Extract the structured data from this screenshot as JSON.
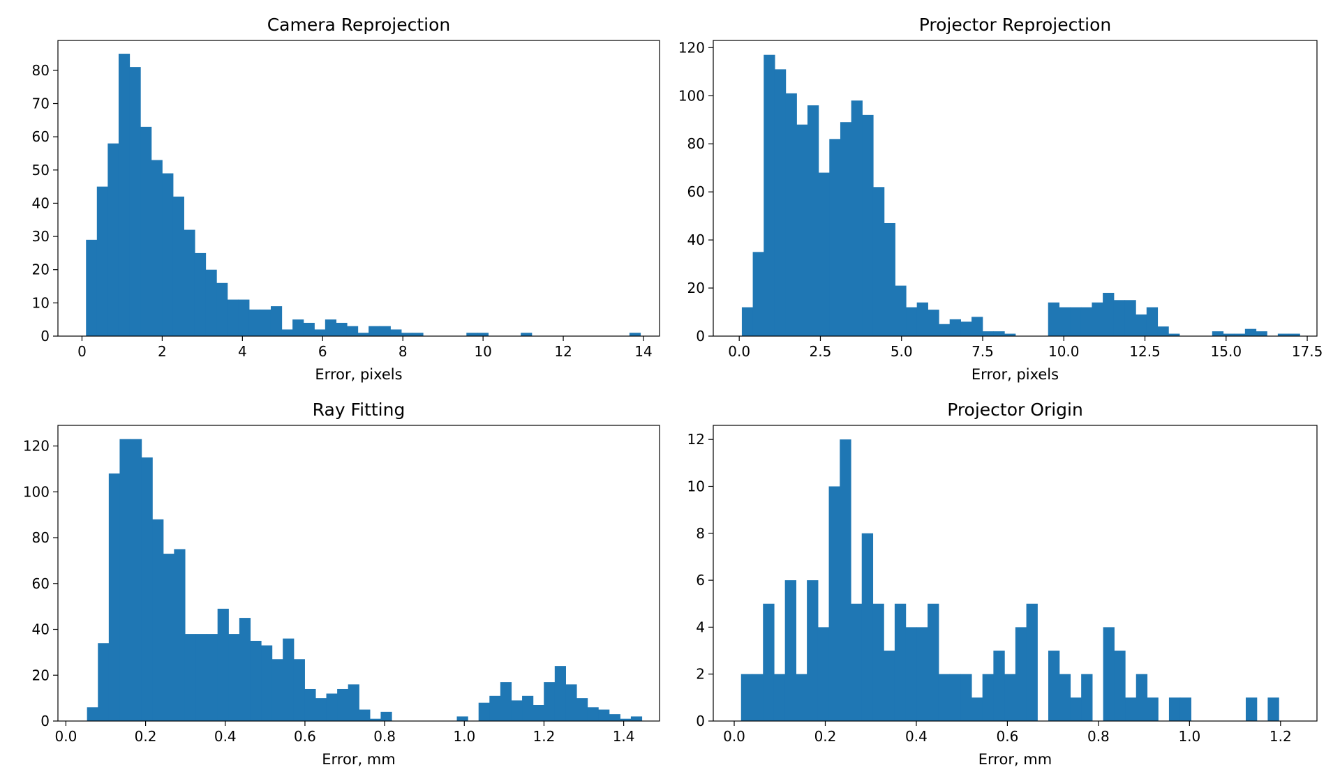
{
  "figure": {
    "bar_color": "#1f77b4"
  },
  "chart_data": [
    {
      "type": "bar",
      "title": "Camera Reprojection",
      "xlabel": "Error, pixels",
      "ylabel": "",
      "xlim": [
        -0.6,
        14.4
      ],
      "ylim": [
        0,
        89
      ],
      "xticks": [
        0,
        2,
        4,
        6,
        8,
        10,
        12,
        14
      ],
      "yticks": [
        0,
        10,
        20,
        30,
        40,
        50,
        60,
        70,
        80
      ],
      "bin_start": 0.1,
      "bin_width": 0.271,
      "values": [
        29,
        45,
        58,
        85,
        81,
        63,
        53,
        49,
        42,
        32,
        25,
        20,
        16,
        11,
        11,
        8,
        8,
        9,
        2,
        5,
        4,
        2,
        5,
        4,
        3,
        1,
        3,
        3,
        2,
        1,
        1,
        0,
        0,
        0,
        0,
        1,
        1,
        0,
        0,
        0,
        1,
        0,
        0,
        0,
        0,
        0,
        0,
        0,
        0,
        0,
        1
      ]
    },
    {
      "type": "bar",
      "title": "Projector Reprojection",
      "xlabel": "Error, pixels",
      "ylabel": "",
      "xlim": [
        -0.8,
        17.8
      ],
      "ylim": [
        0,
        123
      ],
      "xticks": [
        0.0,
        2.5,
        5.0,
        7.5,
        10.0,
        12.5,
        15.0,
        17.5
      ],
      "tick_decimals": 1,
      "yticks": [
        0,
        20,
        40,
        60,
        80,
        100,
        120
      ],
      "bin_start": 0.08,
      "bin_width": 0.337,
      "values": [
        12,
        35,
        117,
        111,
        101,
        88,
        96,
        68,
        82,
        89,
        98,
        92,
        62,
        47,
        21,
        12,
        14,
        11,
        5,
        7,
        6,
        8,
        2,
        2,
        1,
        0,
        0,
        0,
        14,
        12,
        12,
        12,
        14,
        18,
        15,
        15,
        9,
        12,
        4,
        1,
        0,
        0,
        0,
        2,
        1,
        1,
        3,
        2,
        0,
        1,
        1
      ]
    },
    {
      "type": "bar",
      "title": "Ray Fitting",
      "xlabel": "Error, mm",
      "ylabel": "",
      "xlim": [
        -0.02,
        1.49
      ],
      "ylim": [
        0,
        129
      ],
      "xticks": [
        0.0,
        0.2,
        0.4,
        0.6,
        0.8,
        1.0,
        1.2,
        1.4
      ],
      "tick_decimals": 1,
      "yticks": [
        0,
        20,
        40,
        60,
        80,
        100,
        120
      ],
      "bin_start": 0.053,
      "bin_width": 0.0273,
      "values": [
        6,
        34,
        108,
        123,
        123,
        115,
        88,
        73,
        75,
        38,
        38,
        38,
        49,
        38,
        45,
        35,
        33,
        27,
        36,
        27,
        14,
        10,
        12,
        14,
        16,
        5,
        1,
        4,
        0,
        0,
        0,
        0,
        0,
        0,
        2,
        0,
        8,
        11,
        17,
        9,
        11,
        7,
        17,
        24,
        16,
        10,
        6,
        5,
        3,
        1,
        2
      ]
    },
    {
      "type": "bar",
      "title": "Projector Origin",
      "xlabel": "Error, mm",
      "ylabel": "",
      "xlim": [
        -0.046,
        1.28
      ],
      "ylim": [
        0,
        12.6
      ],
      "xticks": [
        0.0,
        0.2,
        0.4,
        0.6,
        0.8,
        1.0,
        1.2
      ],
      "tick_decimals": 1,
      "yticks": [
        0,
        2,
        4,
        6,
        8,
        10,
        12
      ],
      "bin_start": 0.015,
      "bin_width": 0.0241,
      "values": [
        2,
        2,
        5,
        2,
        6,
        2,
        6,
        4,
        10,
        12,
        5,
        8,
        5,
        3,
        5,
        4,
        4,
        5,
        2,
        2,
        2,
        1,
        2,
        3,
        2,
        4,
        5,
        0,
        3,
        2,
        1,
        2,
        0,
        4,
        3,
        1,
        2,
        1,
        0,
        1,
        1,
        0,
        0,
        0,
        0,
        0,
        1,
        0,
        1
      ]
    }
  ]
}
